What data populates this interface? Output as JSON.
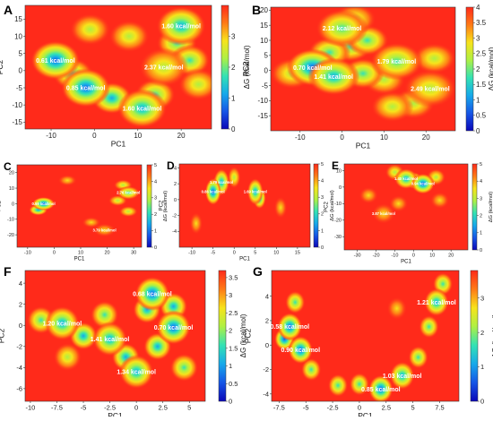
{
  "figure": {
    "colors": {
      "high": "#ff2a1a",
      "c1": "#ff7a16",
      "c2": "#f7e31b",
      "c3": "#aef044",
      "c4": "#33e2b4",
      "c5": "#16a9ea",
      "c6": "#1656e6",
      "low": "#0b07b8"
    }
  },
  "chart_data": [
    {
      "id": "A",
      "type": "heatmap",
      "panel_label": "A",
      "xlabel": "PC1",
      "ylabel": "PC2",
      "colorbar_label": "ΔG (kcal/mol)",
      "xlim": [
        -16,
        27
      ],
      "ylim": [
        -17,
        19
      ],
      "zlim": [
        0,
        4
      ],
      "xticks": [
        -10,
        0,
        10,
        20
      ],
      "yticks": [
        -15,
        -10,
        -5,
        0,
        5,
        10,
        15
      ],
      "cticks": [
        0,
        1,
        2,
        3
      ],
      "basins": [
        {
          "x": -9,
          "y": 3,
          "dg": 0.61,
          "label": "0.61 kcal/mol"
        },
        {
          "x": -2,
          "y": -5,
          "dg": 0.85,
          "label": "0.85 kcal/mol"
        },
        {
          "x": 20,
          "y": 13,
          "dg": 1.6,
          "label": "1.60 kcal/mol"
        },
        {
          "x": 16,
          "y": 1,
          "dg": 2.37,
          "label": "2.37 kcal/mol"
        },
        {
          "x": 11,
          "y": -11,
          "dg": 1.6,
          "label": "1.60 kcal/mol"
        }
      ]
    },
    {
      "id": "B",
      "type": "heatmap",
      "panel_label": "B",
      "xlabel": "PC1",
      "ylabel": "PC2",
      "colorbar_label": "ΔG (kcal/mol)",
      "xlim": [
        -17,
        27
      ],
      "ylim": [
        -20,
        21
      ],
      "zlim": [
        0,
        4
      ],
      "xticks": [
        -10,
        0,
        10,
        20
      ],
      "yticks": [
        -15,
        -10,
        -5,
        0,
        5,
        10,
        15,
        20
      ],
      "cticks": [
        0.0,
        0.5,
        1.0,
        1.5,
        2.0,
        2.5,
        3.0,
        3.5,
        4.0
      ],
      "basins": [
        {
          "x": 0,
          "y": 14,
          "dg": 2.12,
          "label": "2.12 kcal/mol"
        },
        {
          "x": 13,
          "y": 3,
          "dg": 1.79,
          "label": "1.79 kcal/mol"
        },
        {
          "x": -7,
          "y": 1,
          "dg": 0.7,
          "label": "0.70 kcal/mol"
        },
        {
          "x": -2,
          "y": -2,
          "dg": 1.41,
          "label": "1.41 kcal/mol"
        },
        {
          "x": 21,
          "y": -6,
          "dg": 2.49,
          "label": "2.49 kcal/mol"
        }
      ]
    },
    {
      "id": "C",
      "type": "heatmap",
      "panel_label": "C",
      "xlabel": "PC1",
      "ylabel": "PC2",
      "colorbar_label": "ΔG (kcal/mol)",
      "xlim": [
        -14,
        33
      ],
      "ylim": [
        -28,
        25
      ],
      "zlim": [
        0,
        5
      ],
      "xticks": [
        -10,
        0,
        10,
        20,
        30
      ],
      "yticks": [
        -20,
        -10,
        0,
        10,
        20
      ],
      "cticks": [
        0,
        1,
        2,
        3,
        4,
        5
      ],
      "basins": [
        {
          "x": -4,
          "y": 0,
          "dg": 0.59,
          "label": "0.59 kcal/mol"
        },
        {
          "x": 28,
          "y": 7,
          "dg": 2.76,
          "label": "2.76 kcal/mol"
        },
        {
          "x": 19,
          "y": -17,
          "dg": 3.79,
          "label": "3.79 kcal/mol"
        }
      ]
    },
    {
      "id": "D",
      "type": "heatmap",
      "panel_label": "D",
      "xlabel": "PC1",
      "ylabel": "PC2",
      "colorbar_label": "ΔG (kcal/mol)",
      "xlim": [
        -13,
        18
      ],
      "ylim": [
        -6,
        4.5
      ],
      "zlim": [
        0,
        5
      ],
      "xticks": [
        -10,
        -5,
        0,
        5,
        10,
        15
      ],
      "yticks": [
        -4,
        -2,
        0,
        2,
        4
      ],
      "cticks": [
        0,
        1,
        2,
        3,
        4,
        5
      ],
      "basins": [
        {
          "x": -3,
          "y": 2.2,
          "dg": 1.79,
          "label": "1.79 kcal/mol"
        },
        {
          "x": -5,
          "y": 1,
          "dg": 0.86,
          "label": "0.86 kcal/mol"
        },
        {
          "x": 5,
          "y": 1,
          "dg": 1.69,
          "label": "1.69 kcal/mol"
        }
      ]
    },
    {
      "id": "E",
      "type": "heatmap",
      "panel_label": "E",
      "xlabel": "PC1",
      "ylabel": "PC2",
      "colorbar_label": "ΔG (kcal/mol)",
      "xlim": [
        -37,
        29
      ],
      "ylim": [
        -38,
        14
      ],
      "zlim": [
        0,
        5
      ],
      "xticks": [
        -30,
        -20,
        -10,
        0,
        10,
        20
      ],
      "yticks": [
        -30,
        -20,
        -10,
        0,
        10
      ],
      "cticks": [
        0,
        1,
        2,
        3,
        4,
        5
      ],
      "basins": [
        {
          "x": -4,
          "y": 5,
          "dg": 1.4,
          "label": "1.40 kcal/mol"
        },
        {
          "x": 5,
          "y": 2,
          "dg": 0.94,
          "label": "0.94 kcal/mol"
        },
        {
          "x": -16,
          "y": -16,
          "dg": 3.87,
          "label": "3.87 kcal/mol"
        }
      ]
    },
    {
      "id": "F",
      "type": "heatmap",
      "panel_label": "F",
      "xlabel": "PC1",
      "ylabel": "PC2",
      "colorbar_label": "ΔG (kcal/mol)",
      "xlim": [
        -10.5,
        6.5
      ],
      "ylim": [
        -7.2,
        5.2
      ],
      "zlim": [
        0,
        3.7
      ],
      "xticks": [
        -10.0,
        -7.5,
        -5.0,
        -2.5,
        0.0,
        2.5,
        5.0
      ],
      "yticks": [
        -6,
        -4,
        -2,
        0,
        2,
        4
      ],
      "cticks": [
        0.0,
        0.5,
        1.0,
        1.5,
        2.0,
        2.5,
        3.0,
        3.5
      ],
      "basins": [
        {
          "x": 1.5,
          "y": 3,
          "dg": 0.68,
          "label": "0.68 kcal/mol"
        },
        {
          "x": -7,
          "y": 0.2,
          "dg": 1.2,
          "label": "1.20 kcal/mol"
        },
        {
          "x": -2.5,
          "y": -1.3,
          "dg": 1.41,
          "label": "1.41 kcal/mol"
        },
        {
          "x": 3.5,
          "y": -0.2,
          "dg": 0.7,
          "label": "0.70 kcal/mol"
        },
        {
          "x": 0,
          "y": -4.4,
          "dg": 1.34,
          "label": "1.34 kcal/mol"
        }
      ]
    },
    {
      "id": "G",
      "type": "heatmap",
      "panel_label": "G",
      "xlabel": "PC1",
      "ylabel": "PC2",
      "colorbar_label": "ΔG (kcal/mol)",
      "xlim": [
        -8.2,
        9.3
      ],
      "ylim": [
        -4.6,
        6.1
      ],
      "zlim": [
        0,
        3.8
      ],
      "xticks": [
        -7.5,
        -5.0,
        -2.5,
        0.0,
        2.5,
        5.0,
        7.5
      ],
      "yticks": [
        -4,
        -2,
        0,
        2,
        4
      ],
      "cticks": [
        0,
        1,
        2,
        3
      ],
      "basins": [
        {
          "x": -6.5,
          "y": 1.5,
          "dg": 0.58,
          "label": "0.58 kcal/mol"
        },
        {
          "x": -5.5,
          "y": -0.4,
          "dg": 0.9,
          "label": "0.90 kcal/mol"
        },
        {
          "x": 7.2,
          "y": 3.5,
          "dg": 1.21,
          "label": "1.21 kcal/mol"
        },
        {
          "x": 4,
          "y": -2.5,
          "dg": 1.03,
          "label": "1.03 kcal/mol"
        },
        {
          "x": 2,
          "y": -3.6,
          "dg": 0.85,
          "label": "0.85 kcal/mol"
        }
      ]
    }
  ]
}
